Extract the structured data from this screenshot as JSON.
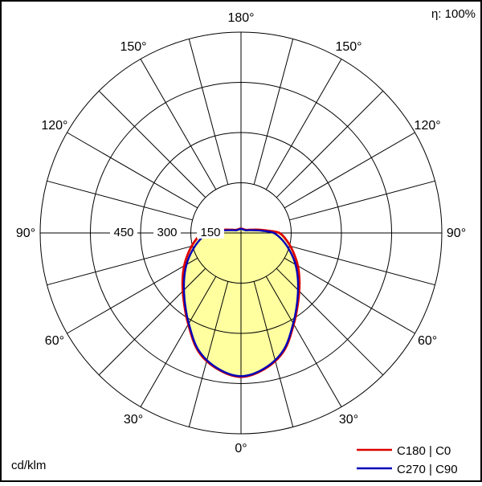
{
  "chart_data": {
    "type": "polar",
    "subtype": "luminous-intensity-distribution",
    "unit": "cd/klm",
    "eta_label": "η: 100%",
    "angle_ticks_deg": [
      0,
      30,
      60,
      90,
      120,
      150,
      180
    ],
    "angle_tick_suffix": "°",
    "spoke_step_deg": 15,
    "r_ticks": [
      150,
      300,
      450
    ],
    "grid_circles": [
      150,
      300,
      450,
      600
    ],
    "r_max": 600,
    "fill_color": "#ffffa0",
    "grid_color": "#000000",
    "series": [
      {
        "name": "C180 | C0",
        "color": "#dd0000",
        "points": [
          [
            0,
            430
          ],
          [
            10,
            412
          ],
          [
            20,
            375
          ],
          [
            30,
            315
          ],
          [
            40,
            266
          ],
          [
            50,
            228
          ],
          [
            60,
            196
          ],
          [
            70,
            166
          ],
          [
            80,
            140
          ],
          [
            90,
            115
          ],
          [
            95,
            80
          ],
          [
            100,
            55
          ],
          [
            110,
            28
          ],
          [
            120,
            18
          ],
          [
            130,
            15
          ],
          [
            140,
            14
          ],
          [
            150,
            13
          ],
          [
            160,
            13
          ],
          [
            170,
            13
          ],
          [
            180,
            13
          ]
        ]
      },
      {
        "name": "C270 | C90",
        "color": "#0000bb",
        "points": [
          [
            0,
            428
          ],
          [
            10,
            410
          ],
          [
            20,
            372
          ],
          [
            30,
            312
          ],
          [
            40,
            262
          ],
          [
            50,
            222
          ],
          [
            60,
            188
          ],
          [
            70,
            155
          ],
          [
            80,
            126
          ],
          [
            90,
            98
          ],
          [
            95,
            68
          ],
          [
            100,
            46
          ],
          [
            110,
            24
          ],
          [
            120,
            16
          ],
          [
            130,
            14
          ],
          [
            140,
            13
          ],
          [
            150,
            12
          ],
          [
            160,
            12
          ],
          [
            170,
            12
          ],
          [
            180,
            12
          ]
        ]
      }
    ]
  }
}
